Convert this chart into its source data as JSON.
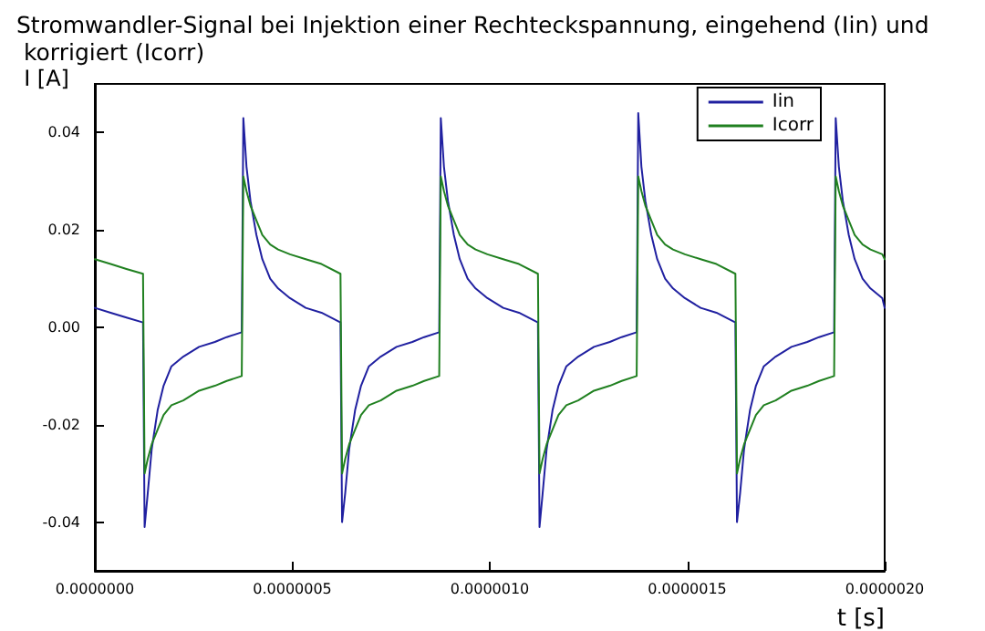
{
  "chart_data": {
    "type": "line",
    "title": "Stromwandler-Signal bei Injektion einer Rechteckspannung, eingehend (Iin) und korrigiert (Icorr)",
    "xlabel": "t [s]",
    "ylabel": "I [A]",
    "x": [
      0,
      4e-08,
      8e-08,
      1.22e-07,
      1.26e-07,
      1.34e-07,
      1.44e-07,
      1.59e-07,
      1.74e-07,
      1.94e-07,
      2.24e-07,
      2.64e-07,
      3.04e-07,
      3.34e-07,
      3.72e-07,
      3.76e-07,
      3.84e-07,
      3.94e-07,
      4.09e-07,
      4.24e-07,
      4.44e-07,
      4.64e-07,
      4.94e-07,
      5.34e-07,
      5.74e-07,
      6.22e-07,
      6.26e-07,
      6.34e-07,
      6.44e-07,
      6.59e-07,
      6.74e-07,
      6.94e-07,
      7.24e-07,
      7.64e-07,
      8.04e-07,
      8.34e-07,
      8.72e-07,
      8.76e-07,
      8.84e-07,
      8.94e-07,
      9.09e-07,
      9.24e-07,
      9.44e-07,
      9.64e-07,
      9.94e-07,
      1.034e-06,
      1.074e-06,
      1.122e-06,
      1.126e-06,
      1.134e-06,
      1.144e-06,
      1.159e-06,
      1.174e-06,
      1.194e-06,
      1.224e-06,
      1.264e-06,
      1.304e-06,
      1.334e-06,
      1.372e-06,
      1.376e-06,
      1.384e-06,
      1.394e-06,
      1.409e-06,
      1.424e-06,
      1.444e-06,
      1.464e-06,
      1.494e-06,
      1.534e-06,
      1.574e-06,
      1.622e-06,
      1.626e-06,
      1.634e-06,
      1.644e-06,
      1.659e-06,
      1.674e-06,
      1.694e-06,
      1.724e-06,
      1.764e-06,
      1.804e-06,
      1.834e-06,
      1.872e-06,
      1.876e-06,
      1.884e-06,
      1.894e-06,
      1.909e-06,
      1.924e-06,
      1.944e-06,
      1.964e-06,
      1.994e-06,
      2e-06
    ],
    "series": [
      {
        "name": "Iin",
        "color": "#2020a0",
        "values": [
          0.004,
          0.003,
          0.002,
          0.001,
          -0.041,
          -0.034,
          -0.025,
          -0.017,
          -0.012,
          -0.008,
          -0.006,
          -0.004,
          -0.003,
          -0.002,
          -0.001,
          0.043,
          0.033,
          0.026,
          0.019,
          0.014,
          0.01,
          0.008,
          0.006,
          0.004,
          0.003,
          0.001,
          -0.04,
          -0.034,
          -0.025,
          -0.017,
          -0.012,
          -0.008,
          -0.006,
          -0.004,
          -0.003,
          -0.002,
          -0.001,
          0.043,
          0.033,
          0.026,
          0.019,
          0.014,
          0.01,
          0.008,
          0.006,
          0.004,
          0.003,
          0.001,
          -0.041,
          -0.034,
          -0.025,
          -0.017,
          -0.012,
          -0.008,
          -0.006,
          -0.004,
          -0.003,
          -0.002,
          -0.001,
          0.044,
          0.033,
          0.026,
          0.019,
          0.014,
          0.01,
          0.008,
          0.006,
          0.004,
          0.003,
          0.001,
          -0.04,
          -0.034,
          -0.025,
          -0.017,
          -0.012,
          -0.008,
          -0.006,
          -0.004,
          -0.003,
          -0.002,
          -0.001,
          0.043,
          0.033,
          0.026,
          0.019,
          0.014,
          0.01,
          0.008,
          0.006,
          0.004
        ]
      },
      {
        "name": "Icorr",
        "color": "#208020",
        "values": [
          0.014,
          0.013,
          0.012,
          0.011,
          -0.03,
          -0.027,
          -0.024,
          -0.021,
          -0.018,
          -0.016,
          -0.015,
          -0.013,
          -0.012,
          -0.011,
          -0.01,
          0.031,
          0.028,
          0.025,
          0.022,
          0.019,
          0.017,
          0.016,
          0.015,
          0.014,
          0.013,
          0.011,
          -0.03,
          -0.027,
          -0.024,
          -0.021,
          -0.018,
          -0.016,
          -0.015,
          -0.013,
          -0.012,
          -0.011,
          -0.01,
          0.031,
          0.028,
          0.025,
          0.022,
          0.019,
          0.017,
          0.016,
          0.015,
          0.014,
          0.013,
          0.011,
          -0.03,
          -0.027,
          -0.024,
          -0.021,
          -0.018,
          -0.016,
          -0.015,
          -0.013,
          -0.012,
          -0.011,
          -0.01,
          0.031,
          0.028,
          0.025,
          0.022,
          0.019,
          0.017,
          0.016,
          0.015,
          0.014,
          0.013,
          0.011,
          -0.03,
          -0.027,
          -0.024,
          -0.021,
          -0.018,
          -0.016,
          -0.015,
          -0.013,
          -0.012,
          -0.011,
          -0.01,
          0.031,
          0.028,
          0.025,
          0.022,
          0.019,
          0.017,
          0.016,
          0.015,
          0.014
        ]
      }
    ],
    "xlim": [
      0,
      2e-06
    ],
    "xticks": [
      {
        "value": 0,
        "label": "0.0000000"
      },
      {
        "value": 5e-07,
        "label": "0.0000005"
      },
      {
        "value": 1e-06,
        "label": "0.0000010"
      },
      {
        "value": 1.5e-06,
        "label": "0.0000015"
      },
      {
        "value": 2e-06,
        "label": "0.0000020"
      }
    ],
    "ylim": [
      -0.05,
      0.05
    ],
    "yticks": [
      {
        "value": -0.04,
        "label": "-0.04"
      },
      {
        "value": -0.02,
        "label": "-0.02"
      },
      {
        "value": 0,
        "label": "0.00"
      },
      {
        "value": 0.02,
        "label": "0.02"
      },
      {
        "value": 0.04,
        "label": "0.04"
      }
    ],
    "legend": "top right",
    "grid": false,
    "marker": "none",
    "line_style": "solid"
  }
}
